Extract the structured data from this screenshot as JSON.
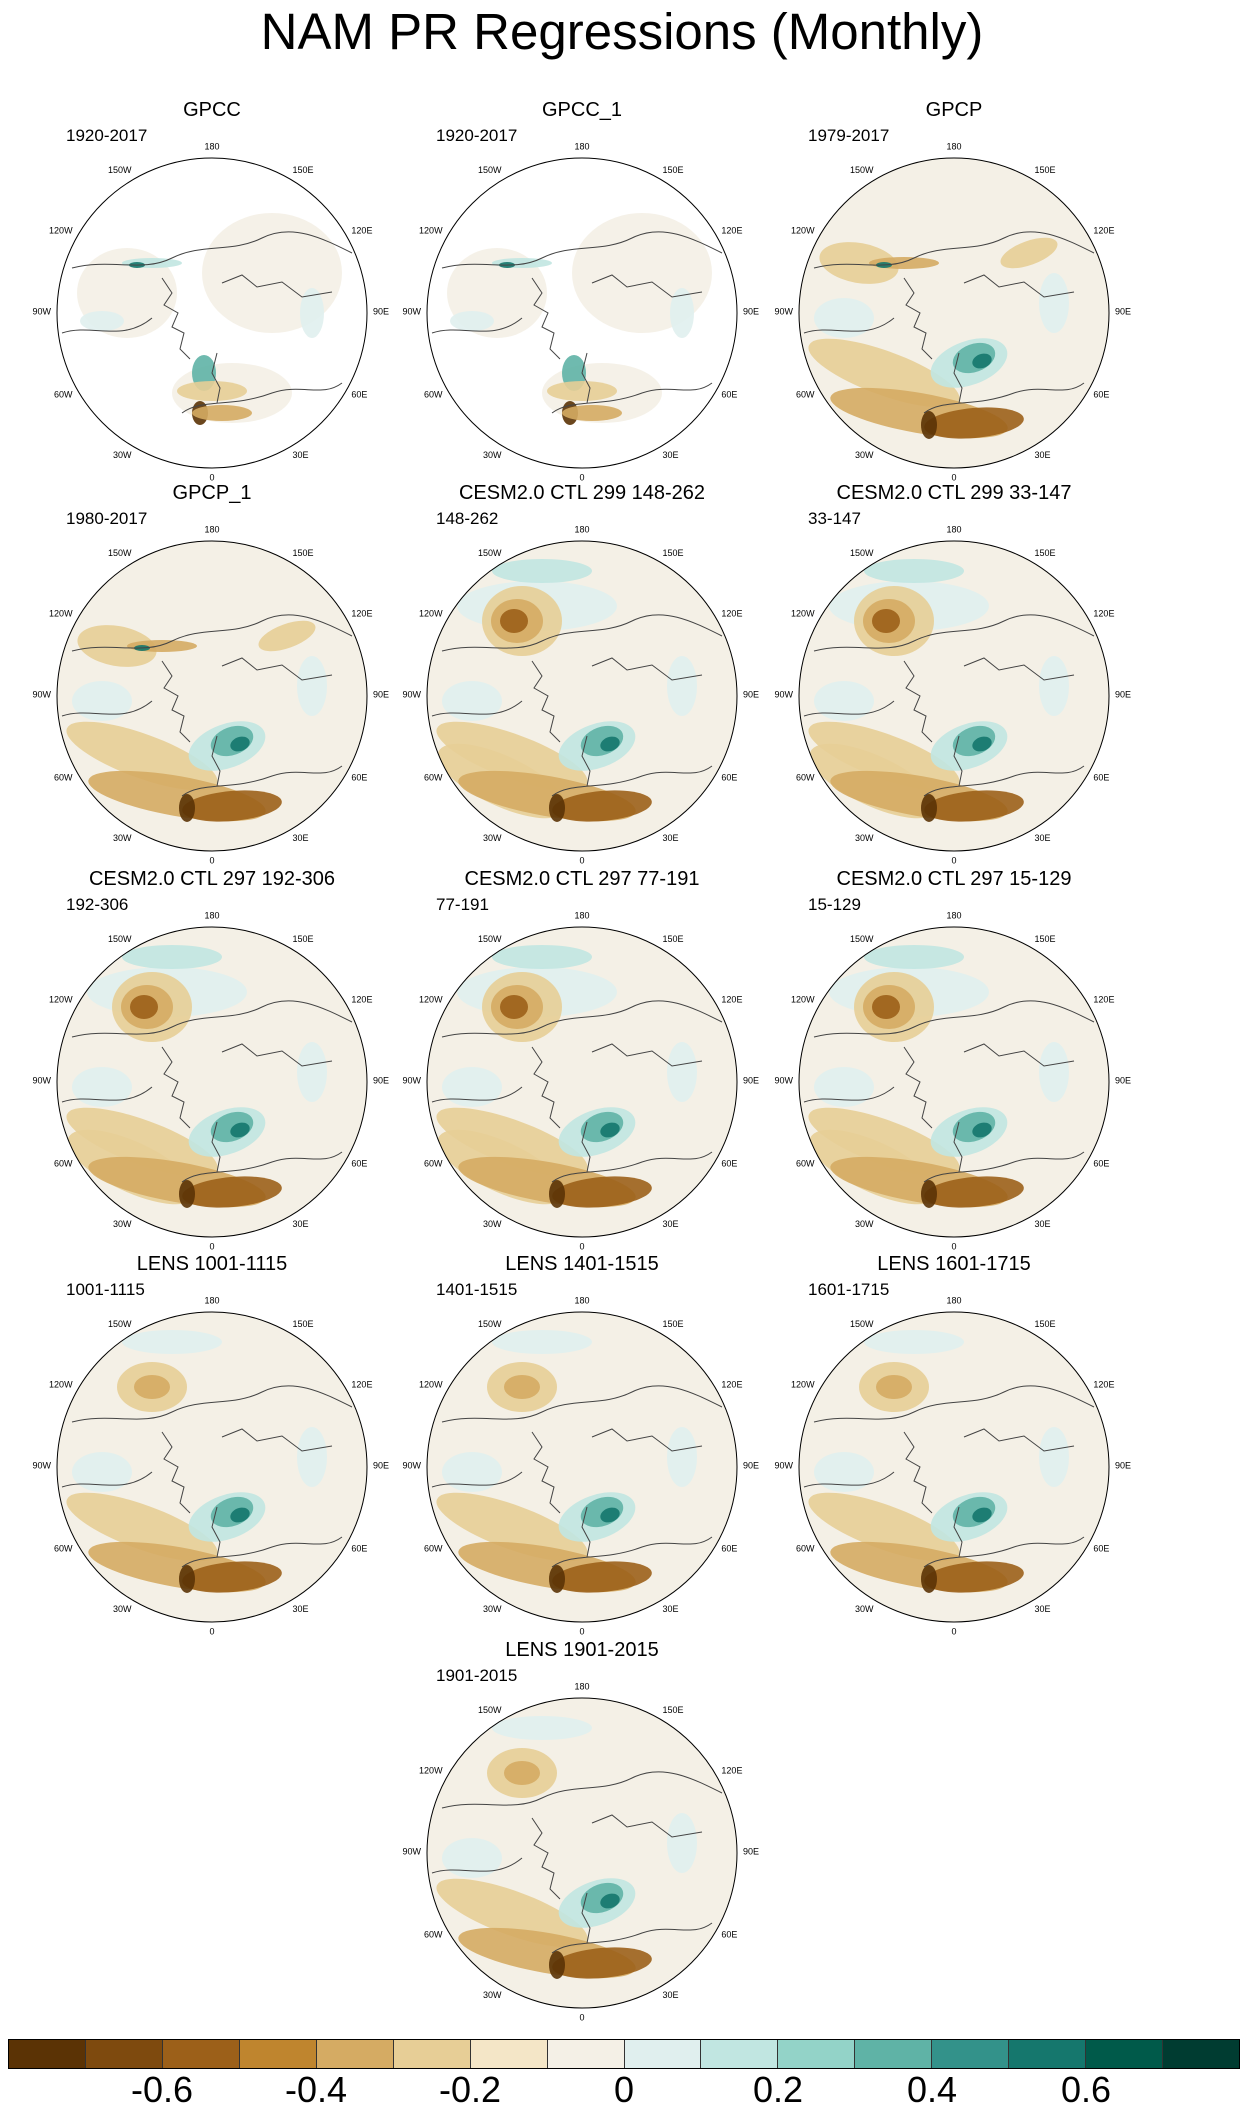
{
  "title": "NAM PR Regressions (Monthly)",
  "ticks": {
    "t180": "180",
    "t150E": "150E",
    "t120E": "120E",
    "t90E": "90E",
    "t60E": "60E",
    "t30E": "30E",
    "t0": "0",
    "t30W": "30W",
    "t60W": "60W",
    "t90W": "90W",
    "t120W": "120W",
    "t150W": "150W"
  },
  "panels": [
    {
      "title": "GPCC",
      "period": "1920-2017",
      "type": "obs_masked"
    },
    {
      "title": "GPCC_1",
      "period": "1920-2017",
      "type": "obs_masked"
    },
    {
      "title": "GPCP",
      "period": "1979-2017",
      "type": "obs_full"
    },
    {
      "title": "GPCP_1",
      "period": "1980-2017",
      "type": "obs_full"
    },
    {
      "title": "CESM2.0 CTL 299 148-262",
      "period": "148-262",
      "type": "model"
    },
    {
      "title": "CESM2.0 CTL 299 33-147",
      "period": "33-147",
      "type": "model"
    },
    {
      "title": "CESM2.0 CTL 297 192-306",
      "period": "192-306",
      "type": "model"
    },
    {
      "title": "CESM2.0 CTL 297 77-191",
      "period": "77-191",
      "type": "model"
    },
    {
      "title": "CESM2.0 CTL 297 15-129",
      "period": "15-129",
      "type": "model"
    },
    {
      "title": "LENS 1001-1115",
      "period": "1001-1115",
      "type": "lens"
    },
    {
      "title": "LENS 1401-1515",
      "period": "1401-1515",
      "type": "lens"
    },
    {
      "title": "LENS 1601-1715",
      "period": "1601-1715",
      "type": "lens"
    },
    {
      "title": "LENS 1901-2015",
      "period": "1901-2015",
      "type": "lens"
    }
  ],
  "colorbar": {
    "colors": [
      "#5b3305",
      "#7e4a0e",
      "#9c6019",
      "#bf852e",
      "#d5ab63",
      "#e7ce96",
      "#f4e6c7",
      "#f4f0e6",
      "#e0efee",
      "#c1e6e1",
      "#93d3c8",
      "#5fb3a6",
      "#33928a",
      "#15776d",
      "#005a4a",
      "#003c31"
    ],
    "labels": [
      "-0.6",
      "-0.4",
      "-0.2",
      "0",
      "0.2",
      "0.4",
      "0.6"
    ]
  }
}
